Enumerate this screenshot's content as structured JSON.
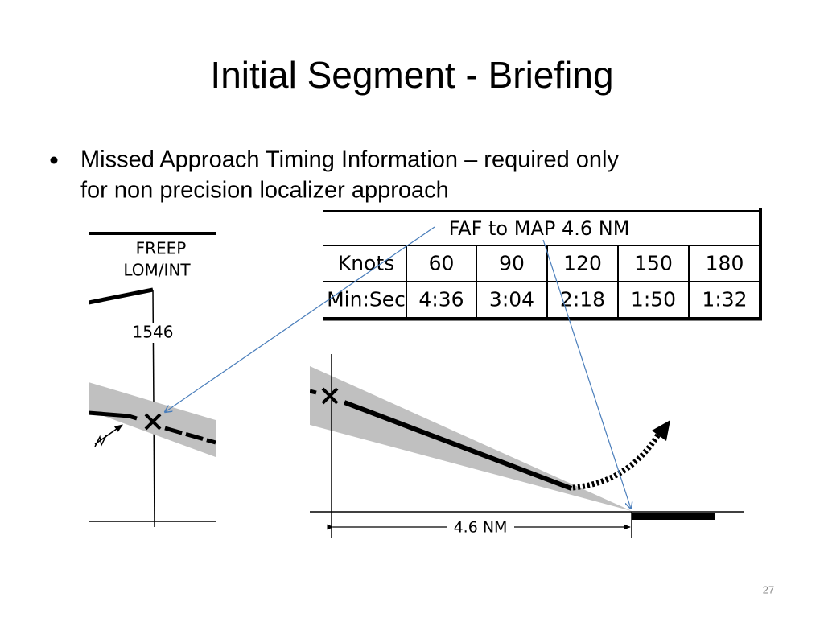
{
  "title": "Initial Segment - Briefing",
  "bullet": {
    "lines": [
      "Missed Approach Timing Information – required only",
      "for non precision localizer approach"
    ]
  },
  "left_diagram": {
    "labels": [
      "FREEP",
      "LOM/INT",
      "1546"
    ]
  },
  "table": {
    "header": "FAF to MAP  4.6 NM",
    "rows": [
      [
        "Knots",
        60,
        90,
        120,
        150,
        180
      ],
      [
        "Min:Sec",
        "4:36",
        "3:04",
        "2:18",
        "1:50",
        "1:32"
      ]
    ]
  },
  "right_diagram": {
    "distance_label": "4.6 NM"
  },
  "slide_number": "27"
}
